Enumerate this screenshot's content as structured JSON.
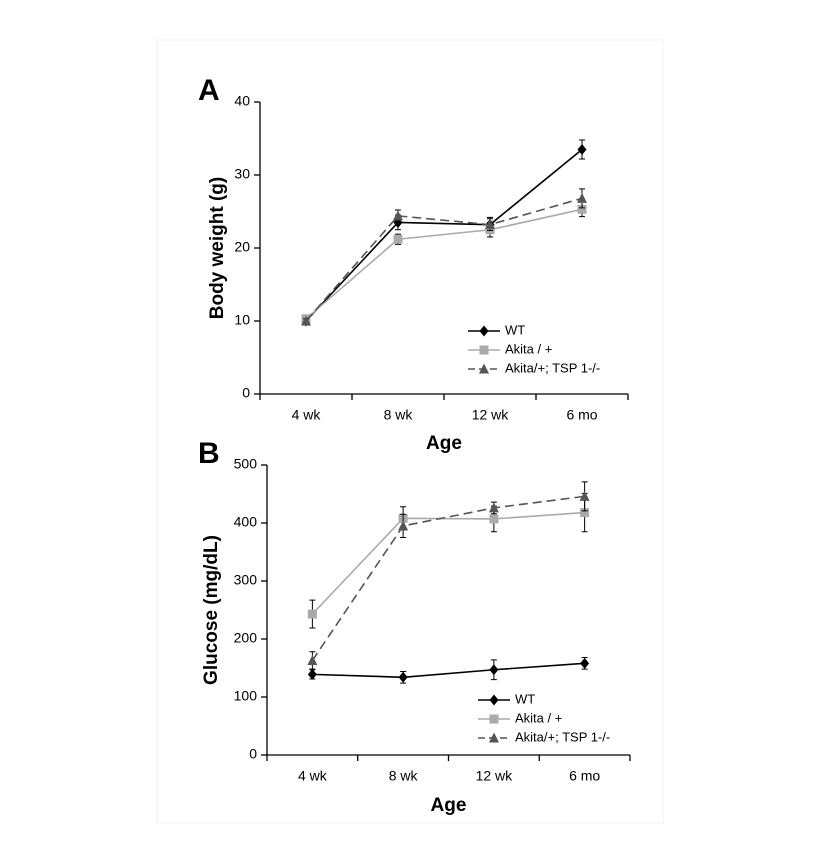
{
  "chart_data": [
    {
      "type": "line",
      "panel_label": "A",
      "xlabel": "Age",
      "ylabel": "Body weight (g)",
      "categories": [
        "4 wk",
        "8 wk",
        "12 wk",
        "6 mo"
      ],
      "ylim": [
        0,
        40
      ],
      "yticks": [
        0,
        10,
        20,
        30,
        40
      ],
      "legend": "lower right",
      "series": [
        {
          "name": "WT",
          "color": "#000000",
          "marker": "diamond",
          "dash": false,
          "values": [
            10,
            23.5,
            23.2,
            33.5
          ],
          "errors": [
            0.3,
            1,
            1,
            1.3
          ]
        },
        {
          "name": "Akita / +",
          "color": "#aaaaaa",
          "marker": "square",
          "dash": false,
          "values": [
            10.3,
            21.2,
            22.5,
            25.3
          ],
          "errors": [
            0.3,
            0.7,
            1,
            1
          ]
        },
        {
          "name": "Akita/+; TSP 1-/-",
          "color": "#555555",
          "marker": "triangle",
          "dash": true,
          "values": [
            10,
            24.4,
            23.2,
            26.8
          ],
          "errors": [
            0.3,
            0.8,
            0.8,
            1.3
          ]
        }
      ]
    },
    {
      "type": "line",
      "panel_label": "B",
      "xlabel": "Age",
      "ylabel": "Glucose (mg/dL)",
      "categories": [
        "4 wk",
        "8 wk",
        "12 wk",
        "6 mo"
      ],
      "ylim": [
        0,
        500
      ],
      "yticks": [
        0,
        100,
        200,
        300,
        400,
        500
      ],
      "legend": "lower right",
      "series": [
        {
          "name": "WT",
          "color": "#000000",
          "marker": "diamond",
          "dash": false,
          "values": [
            139,
            134,
            147,
            158
          ],
          "errors": [
            8,
            10,
            17,
            10
          ]
        },
        {
          "name": "Akita / +",
          "color": "#aaaaaa",
          "marker": "square",
          "dash": false,
          "values": [
            243,
            408,
            407,
            418
          ],
          "errors": [
            24,
            20,
            22,
            33
          ]
        },
        {
          "name": "Akita/+; TSP 1-/-",
          "color": "#555555",
          "marker": "triangle",
          "dash": true,
          "values": [
            163,
            395,
            426,
            446
          ],
          "errors": [
            15,
            20,
            10,
            25
          ]
        }
      ]
    }
  ]
}
